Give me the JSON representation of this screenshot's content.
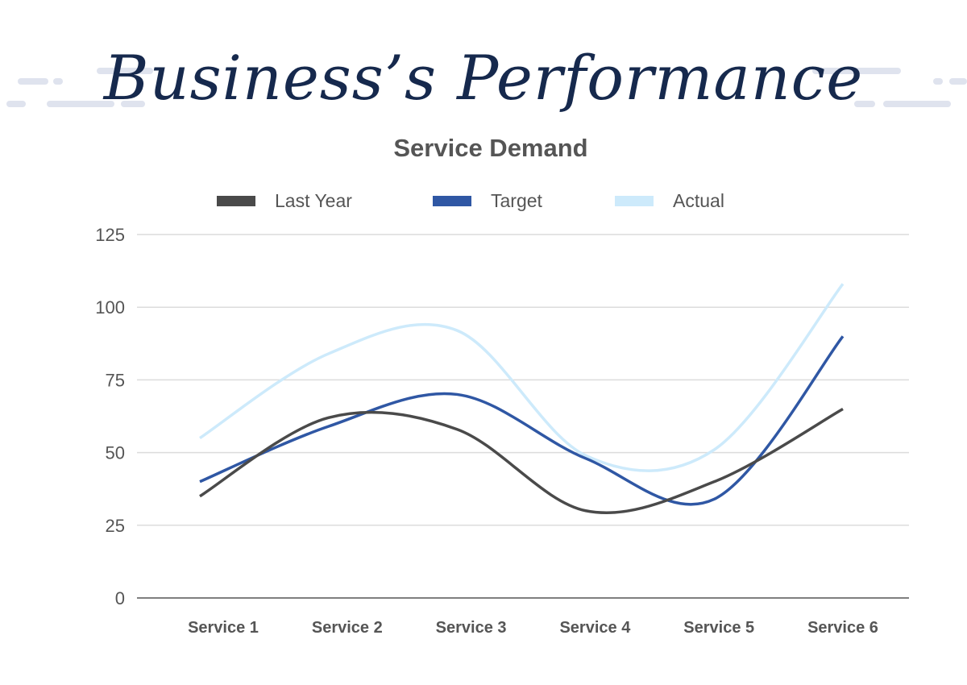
{
  "title": "Business’s Performance",
  "chart_data": {
    "type": "line",
    "title": "Service Demand",
    "categories": [
      "Service 1",
      "Service 2",
      "Service 3",
      "Service 4",
      "Service 5",
      "Service 6"
    ],
    "ylim": [
      0,
      125
    ],
    "yticks": [
      "0",
      "25",
      "50",
      "75",
      "100",
      "125"
    ],
    "grid": true,
    "smooth": true,
    "legend_position": "top",
    "series": [
      {
        "name": "Last Year",
        "color": "#4a4a4a",
        "values": [
          35,
          62,
          58,
          30,
          40,
          65
        ]
      },
      {
        "name": "Target",
        "color": "#2f57a4",
        "values": [
          40,
          59,
          70,
          48,
          34,
          90
        ]
      },
      {
        "name": "Actual",
        "color": "#cdeafb",
        "values": [
          55,
          84,
          92,
          49,
          51,
          108
        ]
      }
    ]
  }
}
